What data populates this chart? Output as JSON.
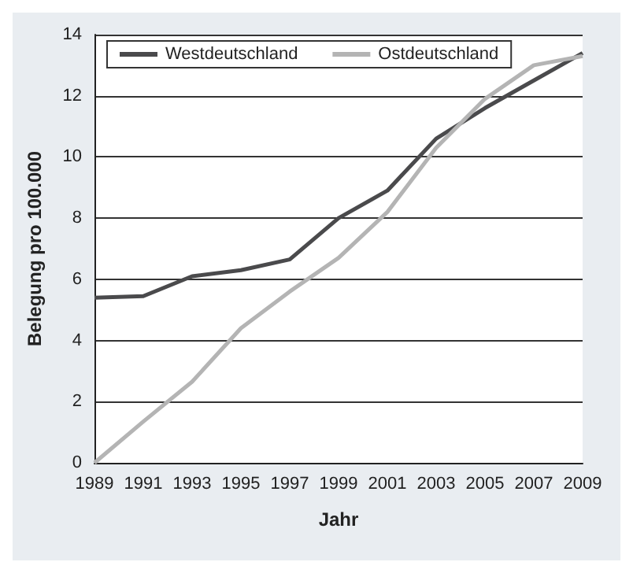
{
  "chart_data": {
    "type": "line",
    "xlabel": "Jahr",
    "ylabel": "Belegung pro 100.000",
    "x": [
      1989,
      1991,
      1993,
      1995,
      1997,
      1999,
      2001,
      2003,
      2005,
      2007,
      2009
    ],
    "xlim": [
      1989,
      2009
    ],
    "xticks": [
      1989,
      1991,
      1993,
      1995,
      1997,
      1999,
      2001,
      2003,
      2005,
      2007,
      2009
    ],
    "ylim": [
      0,
      14
    ],
    "yticks": [
      0,
      2,
      4,
      6,
      8,
      10,
      12,
      14
    ],
    "grid": "y",
    "legend": "top",
    "marker": "none",
    "line_style": "solid",
    "series": [
      {
        "name": "Westdeutschland",
        "color": "#4a4a4c",
        "values": [
          5.4,
          5.45,
          6.1,
          6.3,
          6.65,
          8.0,
          8.9,
          10.6,
          11.6,
          12.5,
          13.4
        ]
      },
      {
        "name": "Ostdeutschland",
        "color": "#b4b4b4",
        "values": [
          0,
          1.35,
          2.65,
          4.4,
          5.6,
          6.7,
          8.2,
          10.3,
          11.9,
          13.0,
          13.3
        ]
      }
    ]
  }
}
